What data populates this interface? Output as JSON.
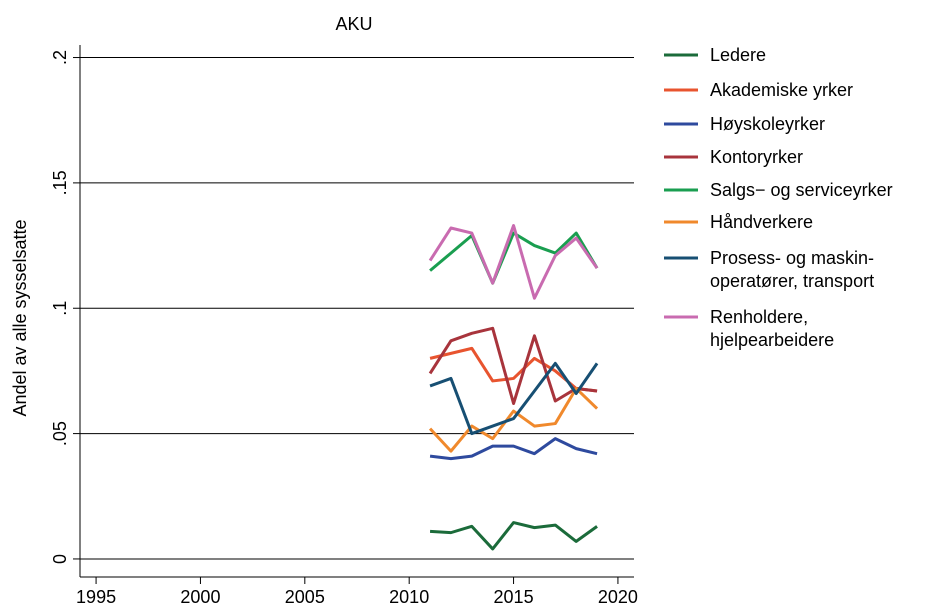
{
  "chart_data": {
    "type": "line",
    "title": "AKU",
    "y_label": "Andel av alle sysselsatte",
    "x": [
      2011,
      2012,
      2013,
      2014,
      2015,
      2016,
      2017,
      2018,
      2019
    ],
    "series": [
      {
        "name": "Ledere",
        "color": "#1b6b3a",
        "values": [
          0.011,
          0.0105,
          0.013,
          0.004,
          0.0145,
          0.0125,
          0.0135,
          0.007,
          0.013
        ]
      },
      {
        "name": "Akademiske yrker",
        "color": "#e8542f",
        "values": [
          0.08,
          0.082,
          0.084,
          0.071,
          0.072,
          0.08,
          0.075,
          0.068,
          0.067
        ]
      },
      {
        "name": "Høyskoleyrker",
        "color": "#2e4a9e",
        "values": [
          0.041,
          0.04,
          0.041,
          0.045,
          0.045,
          0.042,
          0.048,
          0.044,
          0.042
        ]
      },
      {
        "name": "Kontoryrker",
        "color": "#a8343c",
        "values": [
          0.074,
          0.087,
          0.09,
          0.092,
          0.062,
          0.089,
          0.063,
          0.068,
          0.067
        ]
      },
      {
        "name": "Salgs− og serviceyrker",
        "color": "#1a9e50",
        "values": [
          0.115,
          0.122,
          0.129,
          0.11,
          0.13,
          0.125,
          0.122,
          0.13,
          0.116
        ]
      },
      {
        "name": "Håndverkere",
        "color": "#f0892c",
        "values": [
          0.052,
          0.043,
          0.053,
          0.048,
          0.059,
          0.053,
          0.054,
          0.068,
          0.06
        ]
      },
      {
        "name": "Prosess- og maskin-\noperatører, transport",
        "color": "#174f73",
        "values": [
          0.069,
          0.072,
          0.05,
          0.053,
          0.056,
          0.067,
          0.078,
          0.066,
          0.078
        ]
      },
      {
        "name": "Renholdere,\nhjelpearbeidere",
        "color": "#c96bb0",
        "values": [
          0.119,
          0.132,
          0.13,
          0.11,
          0.133,
          0.104,
          0.121,
          0.128,
          0.116
        ]
      }
    ],
    "xlim": [
      1994.23,
      2020.77
    ],
    "ylim": [
      -0.0072,
      0.205
    ],
    "xticks": [
      1995,
      2000,
      2005,
      2010,
      2015,
      2020
    ],
    "yticks": [
      0,
      {
        "value": 0.05,
        "label": ".05"
      },
      {
        "value": 0.1,
        "label": ".1"
      },
      {
        "value": 0.15,
        "label": ".15"
      },
      {
        "value": 0.2,
        "label": ".2"
      }
    ],
    "grid": true
  }
}
